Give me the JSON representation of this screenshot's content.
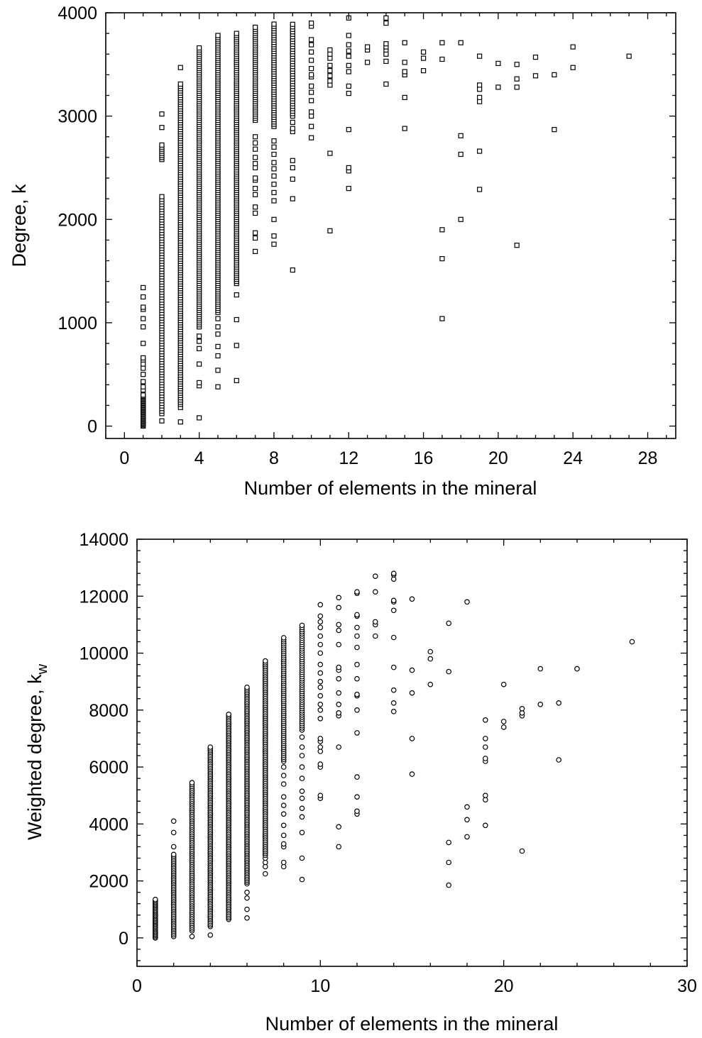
{
  "chart_data": [
    {
      "type": "scatter",
      "marker": "square",
      "title": "",
      "xlabel": "Number of elements in the mineral",
      "ylabel": "Degree, k",
      "xlim": [
        -1,
        29.5
      ],
      "ylim": [
        -120,
        4000
      ],
      "xticks": [
        0,
        4,
        8,
        12,
        16,
        20,
        24,
        28
      ],
      "yticks": [
        0,
        1000,
        2000,
        3000,
        4000
      ],
      "xtick_labels": [
        "0",
        "4",
        "8",
        "12",
        "16",
        "20",
        "24",
        "28"
      ],
      "ytick_labels": [
        "0",
        "1000",
        "2000",
        "3000",
        "4000"
      ],
      "grid": false,
      "columns": [
        {
          "x": 1,
          "y": [
            0,
            10,
            20,
            30,
            40,
            50,
            60,
            70,
            80,
            90,
            100,
            110,
            120,
            130,
            140,
            150,
            160,
            170,
            180,
            190,
            200,
            210,
            220,
            230,
            240,
            250,
            260,
            270,
            280,
            290,
            300,
            350,
            380,
            430,
            500,
            560,
            600,
            640,
            660,
            800,
            960,
            1040,
            1130,
            1150,
            1250,
            1340
          ]
        },
        {
          "x": 2,
          "y": [
            50
          ],
          "range": [
            120,
            2220
          ],
          "step": 25,
          "extra": [
            2580,
            2600,
            2620,
            2640,
            2660,
            2680,
            2700,
            2720,
            2890,
            3020
          ]
        },
        {
          "x": 3,
          "y": [
            40,
            180,
            210
          ],
          "range": [
            230,
            3320
          ],
          "step": 22,
          "extra": [
            3470
          ]
        },
        {
          "x": 4,
          "y": [
            80,
            390,
            420,
            600,
            750,
            820,
            870
          ],
          "range": [
            960,
            3660
          ],
          "step": 20
        },
        {
          "x": 5,
          "y": [
            380,
            540,
            680,
            770,
            890,
            960,
            1040
          ],
          "range": [
            1100,
            3790
          ],
          "step": 20
        },
        {
          "x": 6,
          "y": [
            440,
            780,
            1030,
            1270
          ],
          "range": [
            1380,
            3800
          ],
          "step": 20
        },
        {
          "x": 7,
          "y": [
            1690,
            1820,
            1870,
            2060,
            2120,
            2240,
            2300,
            2380,
            2400,
            2500,
            2540,
            2600,
            2680,
            2740,
            2800
          ],
          "range": [
            2960,
            3860
          ],
          "step": 20
        },
        {
          "x": 8,
          "y": [
            1760,
            1840,
            2000,
            2180,
            2260,
            2340,
            2420,
            2490,
            2550,
            2630,
            2700,
            2760
          ],
          "range": [
            2900,
            3890
          ],
          "step": 22
        },
        {
          "x": 9,
          "y": [
            1510,
            2200,
            2390,
            2500,
            2570,
            2850,
            2880,
            2940
          ],
          "range": [
            3000,
            3910
          ],
          "step": 24
        },
        {
          "x": 10,
          "y": [
            2790,
            2900,
            3000,
            3040,
            3150,
            3230,
            3290,
            3380,
            3400,
            3460,
            3540,
            3620,
            3690,
            3740,
            3870,
            3900
          ]
        },
        {
          "x": 11,
          "y": [
            1890,
            2640,
            3300,
            3340,
            3390,
            3440,
            3490,
            3560,
            3600,
            3640
          ]
        },
        {
          "x": 12,
          "y": [
            2300,
            2470,
            2500,
            2870,
            3220,
            3290,
            3430,
            3490,
            3580,
            3630,
            3690,
            3780,
            3950
          ]
        },
        {
          "x": 13,
          "y": [
            3520,
            3640,
            3670
          ]
        },
        {
          "x": 14,
          "y": [
            3310,
            3530,
            3600,
            3640,
            3670,
            3700,
            3900,
            3950
          ]
        },
        {
          "x": 15,
          "y": [
            2880,
            3180,
            3400,
            3430,
            3520,
            3710
          ]
        },
        {
          "x": 16,
          "y": [
            3440,
            3560,
            3620
          ]
        },
        {
          "x": 17,
          "y": [
            1040,
            1620,
            1900,
            3550,
            3710
          ]
        },
        {
          "x": 18,
          "y": [
            2000,
            2630,
            2810,
            3710
          ]
        },
        {
          "x": 19,
          "y": [
            2290,
            2660,
            3140,
            3180,
            3260,
            3300,
            3580
          ]
        },
        {
          "x": 20,
          "y": [
            3280,
            3510
          ]
        },
        {
          "x": 21,
          "y": [
            1750,
            3280,
            3360,
            3500
          ]
        },
        {
          "x": 22,
          "y": [
            3390,
            3570
          ]
        },
        {
          "x": 23,
          "y": [
            2870,
            3400
          ]
        },
        {
          "x": 24,
          "y": [
            3470,
            3670
          ]
        },
        {
          "x": 27,
          "y": [
            3580
          ]
        }
      ]
    },
    {
      "type": "scatter",
      "marker": "circle",
      "title": "",
      "xlabel": "Number of elements in the mineral",
      "ylabel": "Weighted degree, k",
      "ylabel_subscript": "w",
      "xlim": [
        0,
        30
      ],
      "ylim": [
        -1000,
        14000
      ],
      "xticks": [
        0,
        10,
        20,
        30
      ],
      "yticks": [
        0,
        2000,
        4000,
        6000,
        8000,
        10000,
        12000,
        14000
      ],
      "xtick_labels": [
        "0",
        "10",
        "20",
        "30"
      ],
      "ytick_labels": [
        "0",
        "2000",
        "4000",
        "6000",
        "8000",
        "10000",
        "12000",
        "14000"
      ],
      "grid": false,
      "columns": [
        {
          "x": 1,
          "y": [],
          "range": [
            0,
            1350
          ],
          "step": 45
        },
        {
          "x": 2,
          "y": [
            3200,
            3700,
            4100
          ],
          "range": [
            50,
            2950
          ],
          "step": 60
        },
        {
          "x": 3,
          "y": [
            50
          ],
          "range": [
            250,
            5450
          ],
          "step": 65
        },
        {
          "x": 4,
          "y": [
            100
          ],
          "range": [
            400,
            6700
          ],
          "step": 60
        },
        {
          "x": 5,
          "y": [],
          "range": [
            650,
            7850
          ],
          "step": 60
        },
        {
          "x": 6,
          "y": [
            700,
            1000,
            1400,
            1600
          ],
          "range": [
            1900,
            8850
          ],
          "step": 60
        },
        {
          "x": 7,
          "y": [
            2250,
            2500,
            2650,
            2800
          ],
          "range": [
            2900,
            9750
          ],
          "step": 65
        },
        {
          "x": 8,
          "y": [
            2500,
            2650,
            3200,
            3300,
            3600,
            3950,
            4350,
            4650,
            4950,
            5400,
            5700,
            6000
          ],
          "range": [
            6200,
            10550
          ],
          "step": 70
        },
        {
          "x": 9,
          "y": [
            2050,
            2800,
            3700,
            4250,
            4550,
            4900,
            5150,
            5600,
            6000,
            6400,
            6700,
            7050
          ],
          "range": [
            7300,
            11000
          ],
          "step": 75
        },
        {
          "x": 10,
          "y": [
            4900,
            5000,
            6000,
            6100,
            6550,
            6700,
            6900,
            7000,
            7700,
            8000,
            8200,
            8500,
            8800,
            9000,
            9300,
            9600,
            10000,
            10300,
            10600,
            10900,
            11100,
            11300,
            11700
          ]
        },
        {
          "x": 11,
          "y": [
            3200,
            3900,
            6700,
            7800,
            7900,
            8200,
            8600,
            9100,
            9400,
            9500,
            10300,
            10800,
            11000,
            11600,
            11950
          ]
        },
        {
          "x": 12,
          "y": [
            4350,
            4450,
            4950,
            5650,
            7200,
            8000,
            8500,
            8550,
            9100,
            9600,
            10200,
            10600,
            10900,
            11300,
            11350,
            12100,
            12150
          ]
        },
        {
          "x": 13,
          "y": [
            10600,
            11000,
            11100,
            12150,
            12700
          ]
        },
        {
          "x": 14,
          "y": [
            7950,
            8250,
            8700,
            9500,
            10550,
            11500,
            11800,
            11850,
            12600,
            12750,
            12800
          ]
        },
        {
          "x": 15,
          "y": [
            5750,
            7000,
            8600,
            9400,
            11900
          ]
        },
        {
          "x": 16,
          "y": [
            8900,
            9800,
            10050
          ]
        },
        {
          "x": 17,
          "y": [
            1850,
            2650,
            3350,
            9350,
            11050
          ]
        },
        {
          "x": 18,
          "y": [
            3550,
            4150,
            4600,
            11800
          ]
        },
        {
          "x": 19,
          "y": [
            3950,
            4850,
            5000,
            6200,
            6300,
            6700,
            7000,
            7650
          ]
        },
        {
          "x": 20,
          "y": [
            7400,
            7600,
            8900
          ]
        },
        {
          "x": 21,
          "y": [
            3050,
            7800,
            7900,
            8050
          ]
        },
        {
          "x": 22,
          "y": [
            8200,
            9450
          ]
        },
        {
          "x": 23,
          "y": [
            6250,
            8250
          ]
        },
        {
          "x": 24,
          "y": [
            9450,
            9450
          ]
        },
        {
          "x": 27,
          "y": [
            10400
          ]
        }
      ]
    }
  ]
}
